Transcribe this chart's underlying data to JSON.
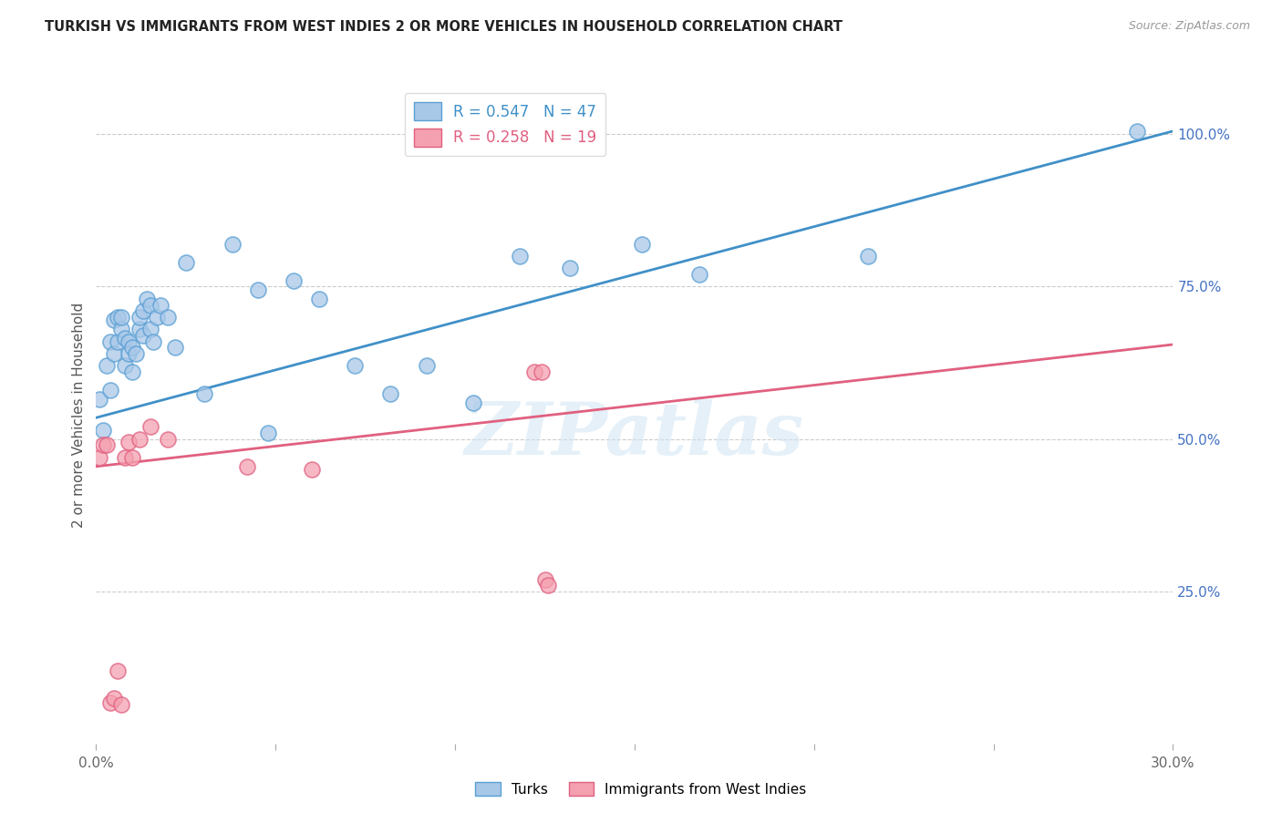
{
  "title": "TURKISH VS IMMIGRANTS FROM WEST INDIES 2 OR MORE VEHICLES IN HOUSEHOLD CORRELATION CHART",
  "source": "Source: ZipAtlas.com",
  "ylabel": "2 or more Vehicles in Household",
  "x_min": 0.0,
  "x_max": 0.3,
  "y_min": 0.0,
  "y_max": 1.08,
  "blue_R": 0.547,
  "blue_N": 47,
  "pink_R": 0.258,
  "pink_N": 19,
  "blue_color": "#a8c8e8",
  "pink_color": "#f4a0b0",
  "blue_line_color": "#4090c8",
  "pink_line_color": "#e06080",
  "blue_edge_color": "#5a9fd4",
  "pink_edge_color": "#e06080",
  "watermark": "ZIPatlas",
  "blue_line_x0": 0.0,
  "blue_line_y0": 0.535,
  "blue_line_x1": 0.3,
  "blue_line_y1": 1.005,
  "pink_line_x0": 0.0,
  "pink_line_y0": 0.455,
  "pink_line_x1": 0.3,
  "pink_line_y1": 0.655,
  "blue_x": [
    0.001,
    0.002,
    0.003,
    0.004,
    0.004,
    0.005,
    0.005,
    0.006,
    0.006,
    0.007,
    0.007,
    0.008,
    0.008,
    0.009,
    0.009,
    0.01,
    0.01,
    0.011,
    0.012,
    0.012,
    0.013,
    0.013,
    0.014,
    0.015,
    0.015,
    0.016,
    0.017,
    0.018,
    0.02,
    0.022,
    0.025,
    0.03,
    0.038,
    0.045,
    0.055,
    0.062,
    0.082,
    0.092,
    0.105,
    0.118,
    0.132,
    0.152,
    0.168,
    0.215,
    0.29,
    0.048,
    0.072
  ],
  "blue_y": [
    0.565,
    0.515,
    0.62,
    0.58,
    0.66,
    0.64,
    0.695,
    0.66,
    0.7,
    0.68,
    0.7,
    0.665,
    0.62,
    0.66,
    0.64,
    0.65,
    0.61,
    0.64,
    0.68,
    0.7,
    0.67,
    0.71,
    0.73,
    0.68,
    0.72,
    0.66,
    0.7,
    0.72,
    0.7,
    0.65,
    0.79,
    0.575,
    0.82,
    0.745,
    0.76,
    0.73,
    0.575,
    0.62,
    0.56,
    0.8,
    0.78,
    0.82,
    0.77,
    0.8,
    1.005,
    0.51,
    0.62
  ],
  "pink_x": [
    0.001,
    0.002,
    0.003,
    0.004,
    0.005,
    0.006,
    0.007,
    0.008,
    0.009,
    0.01,
    0.012,
    0.015,
    0.02,
    0.042,
    0.06,
    0.122,
    0.124,
    0.125,
    0.126
  ],
  "pink_y": [
    0.47,
    0.49,
    0.49,
    0.068,
    0.075,
    0.12,
    0.065,
    0.47,
    0.495,
    0.47,
    0.5,
    0.52,
    0.5,
    0.455,
    0.45,
    0.61,
    0.61,
    0.27,
    0.26
  ]
}
